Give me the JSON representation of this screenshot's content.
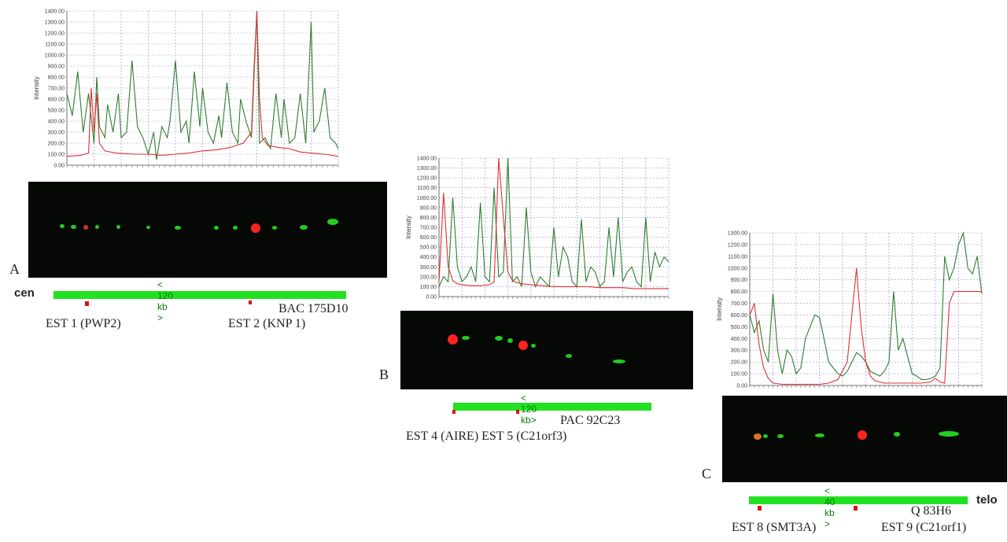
{
  "figure": {
    "panels": [
      {
        "id": "A",
        "label": "A",
        "scale_label": "< 120 kb >",
        "end_label_left": "cen",
        "clone": "BAC 175D10",
        "ests": [
          {
            "text": "EST 1 (PWP2)"
          },
          {
            "text": "EST 2 (KNP 1)"
          }
        ]
      },
      {
        "id": "B",
        "label": "B",
        "scale_label": "< 120 kb>",
        "clone": "PAC 92C23",
        "ests_text": "EST 4 (AIRE) EST 5 (C21orf3)"
      },
      {
        "id": "C",
        "label": "C",
        "scale_label": "< 40 kb >",
        "end_label_right": "telo",
        "clone": "Q 83H6",
        "ests": [
          {
            "text": "EST 8 (SMT3A)"
          },
          {
            "text": "EST 9 (C21orf1)"
          }
        ]
      }
    ]
  },
  "chart_data": [
    {
      "type": "line",
      "panel": "A",
      "ylabel": "Intensity",
      "ylim": [
        0,
        1400
      ],
      "yticks": [
        "0.00",
        "100.00",
        "200.00",
        "300.00",
        "400.00",
        "500.00",
        "600.00",
        "700.00",
        "800.00",
        "900.00",
        "1000.00",
        "1100.00",
        "1200.00",
        "1300.00",
        "1400.00"
      ],
      "xlim": [
        0,
        100
      ],
      "series": [
        {
          "color": "#2e7d2e",
          "x": [
            0,
            2,
            4,
            6,
            8,
            10,
            11,
            12,
            14,
            15,
            17,
            19,
            20,
            22,
            24,
            26,
            28,
            30,
            32,
            33,
            35,
            37,
            38,
            40,
            42,
            44,
            45,
            47,
            49,
            50,
            52,
            54,
            56,
            57,
            59,
            61,
            63,
            64,
            66,
            68,
            70,
            71,
            73,
            75,
            77,
            79,
            80,
            82,
            84,
            86,
            88,
            90,
            91,
            93,
            95,
            97,
            99,
            100
          ],
          "y": [
            650,
            450,
            850,
            300,
            650,
            200,
            800,
            350,
            250,
            550,
            300,
            650,
            250,
            300,
            950,
            350,
            250,
            100,
            300,
            50,
            350,
            250,
            400,
            950,
            300,
            400,
            200,
            850,
            350,
            700,
            300,
            200,
            450,
            250,
            750,
            300,
            200,
            600,
            400,
            250,
            1500,
            200,
            250,
            150,
            650,
            250,
            600,
            200,
            250,
            650,
            200,
            1300,
            300,
            400,
            700,
            250,
            200,
            150
          ]
        },
        {
          "color": "#e03030",
          "x": [
            0,
            5,
            8,
            9,
            10,
            11,
            12,
            14,
            18,
            25,
            30,
            35,
            40,
            45,
            50,
            55,
            60,
            65,
            68,
            69,
            70,
            71,
            72,
            74,
            78,
            82,
            86,
            90,
            95,
            100
          ],
          "y": [
            80,
            90,
            110,
            700,
            300,
            650,
            200,
            130,
            110,
            100,
            100,
            90,
            100,
            110,
            130,
            140,
            160,
            200,
            300,
            900,
            1450,
            600,
            250,
            180,
            160,
            150,
            120,
            110,
            100,
            80
          ]
        }
      ]
    },
    {
      "type": "line",
      "panel": "B",
      "ylabel": "Intensity",
      "ylim": [
        0,
        1400
      ],
      "yticks": [
        "0.00",
        "100.00",
        "200.00",
        "300.00",
        "400.00",
        "500.00",
        "600.00",
        "700.00",
        "800.00",
        "900.00",
        "1000.00",
        "1100.00",
        "1200.00",
        "1300.00",
        "1400.00"
      ],
      "xlim": [
        0,
        100
      ],
      "series": [
        {
          "color": "#2e7d2e",
          "x": [
            0,
            2,
            4,
            6,
            8,
            10,
            12,
            14,
            16,
            18,
            20,
            22,
            24,
            26,
            28,
            30,
            32,
            34,
            36,
            38,
            40,
            42,
            44,
            46,
            48,
            50,
            52,
            54,
            56,
            58,
            60,
            62,
            64,
            66,
            68,
            70,
            72,
            74,
            76,
            78,
            80,
            82,
            84,
            86,
            88,
            90,
            92,
            94,
            96,
            98,
            100
          ],
          "y": [
            100,
            200,
            150,
            1000,
            300,
            150,
            200,
            300,
            150,
            950,
            200,
            150,
            1100,
            200,
            250,
            1400,
            150,
            200,
            100,
            900,
            250,
            100,
            200,
            150,
            100,
            700,
            200,
            500,
            400,
            150,
            100,
            780,
            150,
            300,
            250,
            100,
            150,
            700,
            200,
            800,
            150,
            250,
            300,
            150,
            100,
            800,
            150,
            450,
            300,
            400,
            350
          ]
        },
        {
          "color": "#e03030",
          "x": [
            0,
            2,
            4,
            6,
            8,
            10,
            14,
            18,
            22,
            24,
            26,
            28,
            30,
            32,
            34,
            36,
            40,
            45,
            50,
            55,
            60,
            65,
            70,
            75,
            80,
            85,
            90,
            95,
            100
          ],
          "y": [
            150,
            1050,
            300,
            160,
            130,
            120,
            110,
            110,
            120,
            150,
            1400,
            800,
            250,
            160,
            140,
            130,
            120,
            110,
            100,
            100,
            100,
            100,
            90,
            90,
            90,
            80,
            80,
            80,
            80
          ]
        }
      ]
    },
    {
      "type": "line",
      "panel": "C",
      "ylabel": "Intensity",
      "ylim": [
        0,
        1300
      ],
      "yticks": [
        "0.00",
        "100.00",
        "200.00",
        "300.00",
        "400.00",
        "500.00",
        "600.00",
        "700.00",
        "800.00",
        "900.00",
        "1000.00",
        "1100.00",
        "1200.00",
        "1300.00"
      ],
      "xlim": [
        0,
        100
      ],
      "series": [
        {
          "color": "#2e7d2e",
          "x": [
            0,
            2,
            4,
            6,
            8,
            10,
            12,
            14,
            16,
            18,
            20,
            22,
            24,
            26,
            28,
            30,
            32,
            34,
            36,
            38,
            40,
            42,
            44,
            46,
            48,
            50,
            52,
            54,
            56,
            58,
            60,
            62,
            64,
            66,
            68,
            70,
            72,
            74,
            76,
            78,
            80,
            82,
            84,
            86,
            88,
            90,
            92,
            94,
            96,
            98,
            100
          ],
          "y": [
            600,
            450,
            550,
            300,
            200,
            780,
            300,
            100,
            300,
            250,
            100,
            150,
            400,
            500,
            600,
            580,
            400,
            200,
            150,
            100,
            80,
            120,
            200,
            280,
            250,
            200,
            120,
            100,
            80,
            120,
            200,
            800,
            300,
            400,
            250,
            100,
            80,
            50,
            50,
            60,
            80,
            150,
            1100,
            900,
            1000,
            1200,
            1300,
            1000,
            950,
            1100,
            780
          ]
        },
        {
          "color": "#e03030",
          "x": [
            0,
            2,
            4,
            6,
            8,
            10,
            14,
            18,
            22,
            26,
            30,
            34,
            38,
            42,
            44,
            46,
            48,
            50,
            52,
            54,
            58,
            62,
            66,
            70,
            74,
            78,
            80,
            82,
            84,
            86,
            88,
            90,
            92,
            94,
            96,
            98,
            100
          ],
          "y": [
            600,
            700,
            350,
            150,
            60,
            20,
            10,
            10,
            10,
            10,
            10,
            20,
            50,
            200,
            600,
            1000,
            500,
            200,
            80,
            40,
            20,
            20,
            20,
            20,
            20,
            30,
            60,
            30,
            20,
            700,
            800,
            800,
            800,
            800,
            800,
            800,
            800
          ]
        }
      ]
    }
  ]
}
